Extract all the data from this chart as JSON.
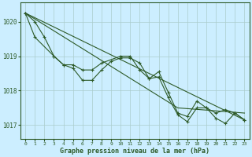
{
  "title": "Graphe pression niveau de la mer (hPa)",
  "bg_color": "#cceeff",
  "grid_color": "#aacccc",
  "line_color": "#2d5a27",
  "xlim": [
    -0.5,
    23.5
  ],
  "ylim": [
    1016.6,
    1020.55
  ],
  "yticks": [
    1017,
    1018,
    1019,
    1020
  ],
  "xtick_labels": [
    "0",
    "1",
    "2",
    "3",
    "4",
    "5",
    "6",
    "7",
    "8",
    "9",
    "10",
    "11",
    "12",
    "13",
    "14",
    "15",
    "16",
    "17",
    "18",
    "19",
    "20",
    "21",
    "22",
    "23"
  ],
  "series1_x": [
    0,
    1,
    2,
    3,
    4,
    5,
    6,
    7,
    8,
    9,
    10,
    11,
    12,
    13,
    14,
    15,
    16,
    17,
    18,
    19,
    20,
    21,
    22,
    23
  ],
  "series1_y": [
    1020.25,
    1020.0,
    1019.55,
    1019.0,
    1018.75,
    1018.65,
    1018.3,
    1018.3,
    1018.6,
    1018.85,
    1018.95,
    1018.95,
    1018.8,
    1018.35,
    1018.55,
    1017.95,
    1017.35,
    1017.25,
    1017.7,
    1017.5,
    1017.35,
    1017.45,
    1017.35,
    1017.15
  ],
  "series2_x": [
    0,
    1,
    3,
    4,
    5,
    6,
    7,
    8,
    10,
    11,
    12,
    13,
    14,
    15,
    16,
    17,
    18,
    19,
    20,
    21,
    22,
    23
  ],
  "series2_y": [
    1020.25,
    1019.55,
    1019.0,
    1018.75,
    1018.75,
    1018.6,
    1018.6,
    1018.8,
    1019.0,
    1019.0,
    1018.6,
    1018.35,
    1018.4,
    1017.8,
    1017.3,
    1017.1,
    1017.5,
    1017.5,
    1017.2,
    1017.05,
    1017.35,
    1017.15
  ],
  "line3": [
    [
      0,
      1020.25
    ],
    [
      23,
      1017.15
    ]
  ],
  "line4": [
    [
      0,
      1020.25
    ],
    [
      16,
      1017.5
    ],
    [
      23,
      1017.35
    ]
  ]
}
